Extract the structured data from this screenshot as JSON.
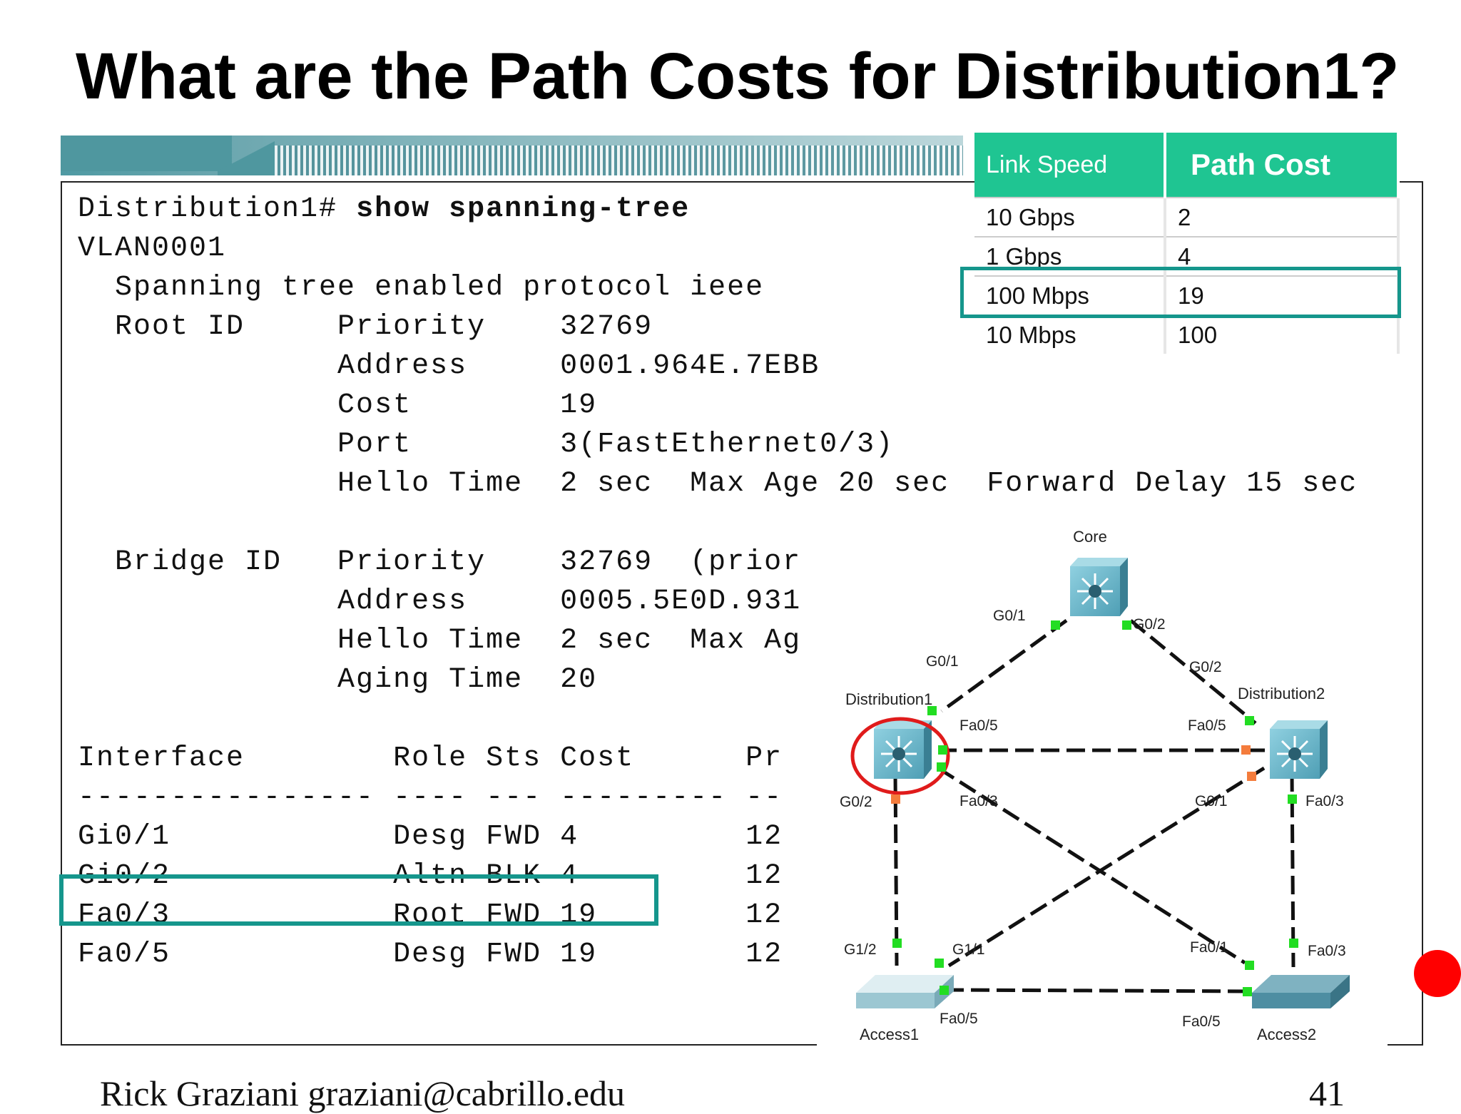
{
  "title": "What are the Path Costs for Distribution1?",
  "terminal": {
    "prompt": "Distribution1# ",
    "command": "show spanning-tree",
    "lines": [
      "VLAN0001",
      "  Spanning tree enabled protocol ieee",
      "  Root ID     Priority    32769",
      "              Address     0001.964E.7EBB",
      "              Cost        19",
      "              Port        3(FastEthernet0/3)",
      "              Hello Time  2 sec  Max Age 20 sec  Forward Delay 15 sec",
      "",
      "  Bridge ID   Priority    32769  (prior",
      "              Address     0005.5E0D.931",
      "              Hello Time  2 sec  Max Ag",
      "              Aging Time  20",
      "",
      "Interface        Role Sts Cost      Pr",
      "---------------- ---- --- --------- --",
      "Gi0/1            Desg FWD 4         12",
      "Gi0/2            Altn BLK 4         12",
      "Fa0/3            Root FWD 19        12",
      "Fa0/5            Desg FWD 19        12"
    ]
  },
  "cost_table": {
    "headers": [
      "Link Speed",
      "Path Cost"
    ],
    "rows": [
      [
        "10 Gbps",
        "2"
      ],
      [
        "1 Gbps",
        "4"
      ],
      [
        "100 Mbps",
        "19"
      ],
      [
        "10 Mbps",
        "100"
      ]
    ]
  },
  "topology": {
    "devices": {
      "core": "Core",
      "dist1": "Distribution1",
      "dist2": "Distribution2",
      "access1": "Access1",
      "access2": "Access2"
    },
    "ports": {
      "core_g01": "G0/1",
      "core_g02": "G0/2",
      "d1_g01": "G0/1",
      "d1_fa05": "Fa0/5",
      "d1_fa03": "Fa0/3",
      "d1_g02": "G0/2",
      "d2_g02": "G0/2",
      "d2_fa05": "Fa0/5",
      "d2_g01": "G0/1",
      "d2_fa03": "Fa0/3",
      "a1_g12": "G1/2",
      "a1_g11": "G1/1",
      "a1_fa05": "Fa0/5",
      "a2_fa01": "Fa0/1",
      "a2_fa03": "Fa0/3",
      "a2_fa05": "Fa0/5"
    }
  },
  "footer": {
    "author": "Rick Graziani  graziani@cabrillo.edu",
    "page": "41"
  },
  "colors": {
    "highlight": "#15968c",
    "table_header": "#1fc592",
    "port_up": "#22dd22",
    "port_blocked": "#f47c3c",
    "circle": "#e01b1b"
  }
}
